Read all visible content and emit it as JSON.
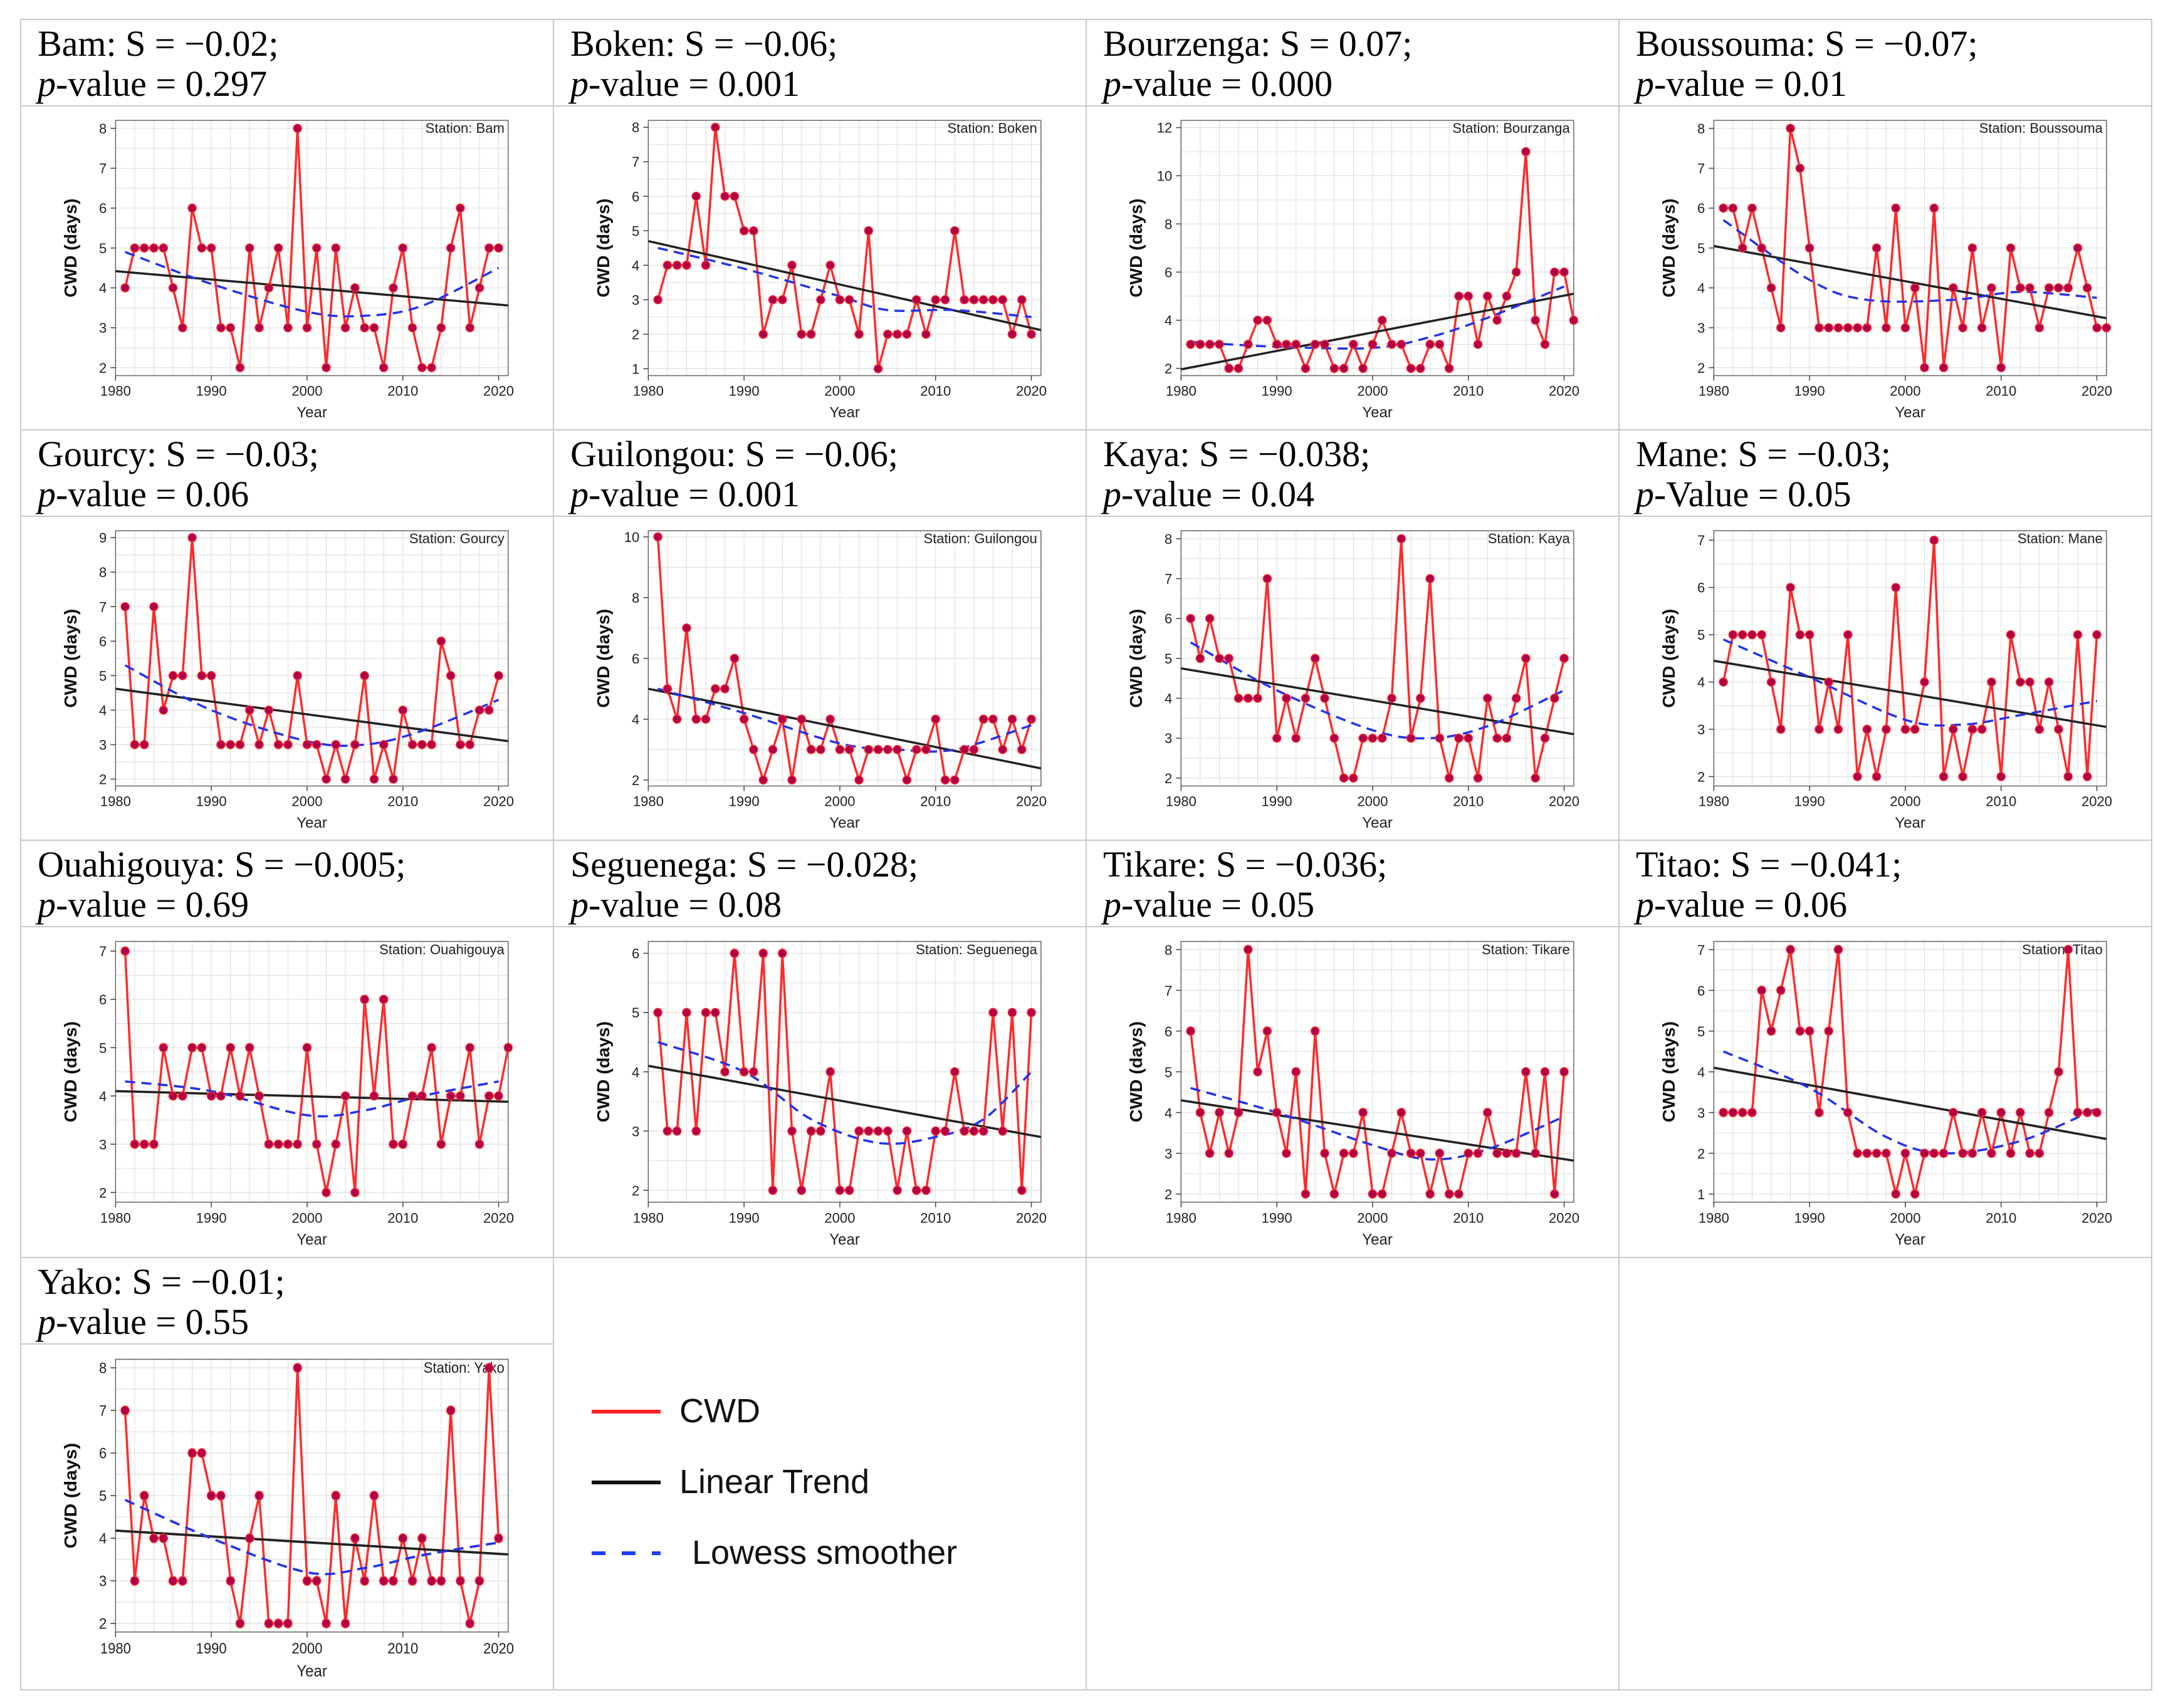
{
  "chart_data": [
    {
      "type": "line",
      "station": "Bam",
      "title": "Station: Bam",
      "header": "Bam: S = −0.02;",
      "pvalue": "p-value = 0.297",
      "xlabel": "Year",
      "ylabel": "CWD (days)",
      "xlim": [
        1980,
        2021
      ],
      "ylim": [
        1.8,
        8.2
      ],
      "yticks": [
        2,
        3,
        4,
        5,
        6,
        7,
        8
      ],
      "xticks": [
        1980,
        1990,
        2000,
        2010,
        2020
      ],
      "start_year": 1981,
      "values": [
        4,
        5,
        5,
        5,
        5,
        4,
        3,
        6,
        5,
        5,
        3,
        3,
        2,
        5,
        3,
        4,
        5,
        3,
        8,
        3,
        5,
        2,
        5,
        3,
        4,
        3,
        3,
        2,
        4,
        5,
        3,
        2,
        2,
        3,
        5,
        6,
        3,
        4,
        5,
        5
      ],
      "trend": [
        4.42,
        3.56
      ],
      "lowess": [
        [
          1981,
          4.9
        ],
        [
          1990,
          4.1
        ],
        [
          2000,
          3.4
        ],
        [
          2006,
          3.3
        ],
        [
          2012,
          3.55
        ],
        [
          2020,
          4.5
        ]
      ]
    },
    {
      "type": "line",
      "station": "Boken",
      "title": "Station: Boken",
      "header": "Boken:  S = −0.06;",
      "pvalue": "p-value = 0.001",
      "xlabel": "Year",
      "ylabel": "CWD (days)",
      "xlim": [
        1980,
        2021
      ],
      "ylim": [
        0.8,
        8.2
      ],
      "yticks": [
        1,
        2,
        3,
        4,
        5,
        6,
        7,
        8
      ],
      "xticks": [
        1980,
        1990,
        2000,
        2010,
        2020
      ],
      "start_year": 1981,
      "values": [
        3,
        4,
        4,
        4,
        6,
        4,
        8,
        6,
        6,
        5,
        5,
        2,
        3,
        3,
        4,
        2,
        2,
        3,
        4,
        3,
        3,
        2,
        5,
        1,
        2,
        2,
        2,
        3,
        2,
        3,
        3,
        5,
        3,
        3,
        3,
        3,
        3,
        2,
        3,
        2
      ],
      "trend": [
        4.7,
        2.12
      ],
      "lowess": [
        [
          1981,
          4.5
        ],
        [
          1990,
          3.9
        ],
        [
          2000,
          3.1
        ],
        [
          2005,
          2.7
        ],
        [
          2012,
          2.7
        ],
        [
          2020,
          2.5
        ]
      ]
    },
    {
      "type": "line",
      "station": "Bourzenga",
      "title": "Station: Bourzanga",
      "header": "Bourzenga: S = 0.07;",
      "pvalue": "p-value = 0.000",
      "xlabel": "Year",
      "ylabel": "CWD (days)",
      "xlim": [
        1980,
        2021
      ],
      "ylim": [
        1.7,
        12.3
      ],
      "yticks": [
        2,
        4,
        6,
        8,
        10,
        12
      ],
      "xticks": [
        1980,
        1990,
        2000,
        2010,
        2020
      ],
      "start_year": 1981,
      "values": [
        3,
        3,
        3,
        3,
        2,
        2,
        3,
        4,
        4,
        3,
        3,
        3,
        2,
        3,
        3,
        2,
        2,
        3,
        2,
        3,
        4,
        3,
        3,
        2,
        2,
        3,
        3,
        2,
        5,
        5,
        3,
        5,
        4,
        5,
        6,
        11,
        4,
        3,
        6,
        6,
        4
      ],
      "trend": [
        1.96,
        5.1
      ],
      "lowess": [
        [
          1981,
          3.1
        ],
        [
          1990,
          2.9
        ],
        [
          2000,
          2.85
        ],
        [
          2006,
          3.3
        ],
        [
          2012,
          4.1
        ],
        [
          2020,
          5.4
        ]
      ]
    },
    {
      "type": "line",
      "station": "Boussouma",
      "title": "Station: Boussouma",
      "header": "Boussouma: S = −0.07;",
      "pvalue": "p-value = 0.01",
      "xlabel": "Year",
      "ylabel": "CWD (days)",
      "xlim": [
        1980,
        2021
      ],
      "ylim": [
        1.8,
        8.2
      ],
      "yticks": [
        2,
        3,
        4,
        5,
        6,
        7,
        8
      ],
      "xticks": [
        1980,
        1990,
        2000,
        2010,
        2020
      ],
      "start_year": 1981,
      "values": [
        6,
        6,
        5,
        6,
        5,
        4,
        3,
        8,
        7,
        5,
        3,
        3,
        3,
        3,
        3,
        3,
        5,
        3,
        6,
        3,
        4,
        2,
        6,
        2,
        4,
        3,
        5,
        3,
        4,
        2,
        5,
        4,
        4,
        3,
        4,
        4,
        4,
        5,
        4,
        3,
        3
      ],
      "trend": [
        5.05,
        3.24
      ],
      "lowess": [
        [
          1981,
          5.7
        ],
        [
          1990,
          4.2
        ],
        [
          1996,
          3.7
        ],
        [
          2005,
          3.7
        ],
        [
          2012,
          3.9
        ],
        [
          2020,
          3.75
        ]
      ]
    },
    {
      "type": "line",
      "station": "Gourcy",
      "title": "Station: Gourcy",
      "header": "Gourcy:  S = −0.03;",
      "pvalue": "p-value = 0.06",
      "xlabel": "Year",
      "ylabel": "CWD (days)",
      "xlim": [
        1980,
        2021
      ],
      "ylim": [
        1.8,
        9.2
      ],
      "yticks": [
        2,
        3,
        4,
        5,
        6,
        7,
        8,
        9
      ],
      "xticks": [
        1980,
        1990,
        2000,
        2010,
        2020
      ],
      "start_year": 1981,
      "values": [
        7,
        3,
        3,
        7,
        4,
        5,
        5,
        9,
        5,
        5,
        3,
        3,
        3,
        4,
        3,
        4,
        3,
        3,
        5,
        3,
        3,
        2,
        3,
        2,
        3,
        5,
        2,
        3,
        2,
        4,
        3,
        3,
        3,
        6,
        5,
        3,
        3,
        4,
        4,
        5
      ],
      "trend": [
        4.62,
        3.1
      ],
      "lowess": [
        [
          1981,
          5.3
        ],
        [
          1990,
          4.0
        ],
        [
          2000,
          3.1
        ],
        [
          2006,
          3.0
        ],
        [
          2012,
          3.4
        ],
        [
          2020,
          4.3
        ]
      ]
    },
    {
      "type": "line",
      "station": "Guilongou",
      "title": "Station: Guilongou",
      "header": "Guilongou:  S = −0.06;",
      "pvalue": "p-value = 0.001",
      "xlabel": "Year",
      "ylabel": "CWD (days)",
      "xlim": [
        1980,
        2021
      ],
      "ylim": [
        1.8,
        10.2
      ],
      "yticks": [
        2,
        4,
        6,
        8,
        10
      ],
      "xticks": [
        1980,
        1990,
        2000,
        2010,
        2020
      ],
      "start_year": 1981,
      "values": [
        10,
        5,
        4,
        7,
        4,
        4,
        5,
        5,
        6,
        4,
        3,
        2,
        3,
        4,
        2,
        4,
        3,
        3,
        4,
        3,
        3,
        2,
        3,
        3,
        3,
        3,
        2,
        3,
        3,
        4,
        2,
        2,
        3,
        3,
        4,
        4,
        3,
        4,
        3,
        4
      ],
      "trend": [
        5.0,
        2.38
      ],
      "lowess": [
        [
          1981,
          5.0
        ],
        [
          1990,
          4.2
        ],
        [
          2000,
          3.2
        ],
        [
          2006,
          3.0
        ],
        [
          2012,
          3.0
        ],
        [
          2020,
          3.8
        ]
      ]
    },
    {
      "type": "line",
      "station": "Kaya",
      "title": "Station: Kaya",
      "header": "Kaya:  S = −0.038;",
      "pvalue": "p-value = 0.04",
      "xlabel": "Year",
      "ylabel": "CWD (days)",
      "xlim": [
        1980,
        2021
      ],
      "ylim": [
        1.8,
        8.2
      ],
      "yticks": [
        2,
        3,
        4,
        5,
        6,
        7,
        8
      ],
      "xticks": [
        1980,
        1990,
        2000,
        2010,
        2020
      ],
      "start_year": 1981,
      "values": [
        6,
        5,
        6,
        5,
        5,
        4,
        4,
        4,
        7,
        3,
        4,
        3,
        4,
        5,
        4,
        3,
        2,
        2,
        3,
        3,
        3,
        4,
        8,
        3,
        4,
        7,
        3,
        2,
        3,
        3,
        2,
        4,
        3,
        3,
        4,
        5,
        2,
        3,
        4,
        5
      ],
      "trend": [
        4.75,
        3.1
      ],
      "lowess": [
        [
          1981,
          5.4
        ],
        [
          1990,
          4.2
        ],
        [
          2000,
          3.2
        ],
        [
          2006,
          3.0
        ],
        [
          2012,
          3.3
        ],
        [
          2020,
          4.2
        ]
      ]
    },
    {
      "type": "line",
      "station": "Mane",
      "title": "Station: Mane",
      "header": "Mane: S = −0.03;",
      "pvalue": "p-Value = 0.05",
      "xlabel": "Year",
      "ylabel": "CWD (days)",
      "xlim": [
        1980,
        2021
      ],
      "ylim": [
        1.8,
        7.2
      ],
      "yticks": [
        2,
        3,
        4,
        5,
        6,
        7
      ],
      "xticks": [
        1980,
        1990,
        2000,
        2010,
        2020
      ],
      "start_year": 1981,
      "values": [
        4,
        5,
        5,
        5,
        5,
        4,
        3,
        6,
        5,
        5,
        3,
        4,
        3,
        5,
        2,
        3,
        2,
        3,
        6,
        3,
        3,
        4,
        7,
        2,
        3,
        2,
        3,
        3,
        4,
        2,
        5,
        4,
        4,
        3,
        4,
        3,
        2,
        5,
        2,
        5
      ],
      "trend": [
        4.45,
        3.05
      ],
      "lowess": [
        [
          1981,
          4.9
        ],
        [
          1990,
          4.1
        ],
        [
          2000,
          3.2
        ],
        [
          2006,
          3.1
        ],
        [
          2012,
          3.3
        ],
        [
          2020,
          3.6
        ]
      ]
    },
    {
      "type": "line",
      "station": "Ouahigouya",
      "title": "Station: Ouahigouya",
      "header": "Ouahigouya: S = −0.005;",
      "pvalue": "p-value = 0.69",
      "xlabel": "Year",
      "ylabel": "CWD (days)",
      "xlim": [
        1980,
        2021
      ],
      "ylim": [
        1.8,
        7.2
      ],
      "yticks": [
        2,
        3,
        4,
        5,
        6,
        7
      ],
      "xticks": [
        1980,
        1990,
        2000,
        2010,
        2020
      ],
      "start_year": 1981,
      "values": [
        7,
        3,
        3,
        3,
        5,
        4,
        4,
        5,
        5,
        4,
        4,
        5,
        4,
        5,
        4,
        3,
        3,
        3,
        3,
        5,
        3,
        2,
        3,
        4,
        2,
        6,
        4,
        6,
        3,
        3,
        4,
        4,
        5,
        3,
        4,
        4,
        5,
        3,
        4,
        4,
        5
      ],
      "trend": [
        4.1,
        3.88
      ],
      "lowess": [
        [
          1981,
          4.3
        ],
        [
          1990,
          4.1
        ],
        [
          2000,
          3.6
        ],
        [
          2006,
          3.7
        ],
        [
          2012,
          4.0
        ],
        [
          2020,
          4.3
        ]
      ]
    },
    {
      "type": "line",
      "station": "Seguenega",
      "title": "Station: Seguenega",
      "header": "Seguenega: S = −0.028;",
      "pvalue": "p-value = 0.08",
      "xlabel": "Year",
      "ylabel": "CWD (days)",
      "xlim": [
        1980,
        2021
      ],
      "ylim": [
        1.8,
        6.2
      ],
      "yticks": [
        2,
        3,
        4,
        5,
        6
      ],
      "xticks": [
        1980,
        1990,
        2000,
        2010,
        2020
      ],
      "start_year": 1981,
      "values": [
        5,
        3,
        3,
        5,
        3,
        5,
        5,
        4,
        6,
        4,
        4,
        6,
        2,
        6,
        3,
        2,
        3,
        3,
        4,
        2,
        2,
        3,
        3,
        3,
        3,
        2,
        3,
        2,
        2,
        3,
        3,
        4,
        3,
        3,
        3,
        5,
        3,
        5,
        2,
        5
      ],
      "trend": [
        4.1,
        2.9
      ],
      "lowess": [
        [
          1981,
          4.5
        ],
        [
          1990,
          4.0
        ],
        [
          1997,
          3.2
        ],
        [
          2004,
          2.8
        ],
        [
          2010,
          2.9
        ],
        [
          2015,
          3.2
        ],
        [
          2020,
          4.0
        ]
      ]
    },
    {
      "type": "line",
      "station": "Tikare",
      "title": "Station: Tikare",
      "header": "Tikare: S = −0.036;",
      "pvalue": "p-value = 0.05",
      "xlabel": "Year",
      "ylabel": "CWD (days)",
      "xlim": [
        1980,
        2021
      ],
      "ylim": [
        1.8,
        8.2
      ],
      "yticks": [
        2,
        3,
        4,
        5,
        6,
        7,
        8
      ],
      "xticks": [
        1980,
        1990,
        2000,
        2010,
        2020
      ],
      "start_year": 1981,
      "values": [
        6,
        4,
        3,
        4,
        3,
        4,
        8,
        5,
        6,
        4,
        3,
        5,
        2,
        6,
        3,
        2,
        3,
        3,
        4,
        2,
        2,
        3,
        4,
        3,
        3,
        2,
        3,
        2,
        2,
        3,
        3,
        4,
        3,
        3,
        3,
        5,
        3,
        5,
        2,
        5
      ],
      "trend": [
        4.3,
        2.82
      ],
      "lowess": [
        [
          1981,
          4.6
        ],
        [
          1990,
          4.0
        ],
        [
          2000,
          3.2
        ],
        [
          2006,
          2.85
        ],
        [
          2012,
          3.1
        ],
        [
          2020,
          3.9
        ]
      ]
    },
    {
      "type": "line",
      "station": "Titao",
      "title": "Station: Titao",
      "header": "Titao: S = −0.041;",
      "pvalue": "p-value = 0.06",
      "xlabel": "Year",
      "ylabel": "CWD (days)",
      "xlim": [
        1980,
        2021
      ],
      "ylim": [
        0.8,
        7.2
      ],
      "yticks": [
        1,
        2,
        3,
        4,
        5,
        6,
        7
      ],
      "xticks": [
        1980,
        1990,
        2000,
        2010,
        2020
      ],
      "start_year": 1981,
      "values": [
        3,
        3,
        3,
        3,
        6,
        5,
        6,
        7,
        5,
        5,
        3,
        5,
        7,
        3,
        2,
        2,
        2,
        2,
        1,
        2,
        1,
        2,
        2,
        2,
        3,
        2,
        2,
        3,
        2,
        3,
        2,
        3,
        2,
        2,
        3,
        4,
        7,
        3,
        3,
        3
      ],
      "trend": [
        4.1,
        2.35
      ],
      "lowess": [
        [
          1981,
          4.5
        ],
        [
          1990,
          3.6
        ],
        [
          1998,
          2.4
        ],
        [
          2004,
          2.0
        ],
        [
          2012,
          2.3
        ],
        [
          2020,
          3.1
        ]
      ]
    },
    {
      "type": "line",
      "station": "Yako",
      "title": "Station: Yako",
      "header": "Yako: S = −0.01;",
      "pvalue": "p-value = 0.55",
      "xlabel": "Year",
      "ylabel": "CWD (days)",
      "xlim": [
        1980,
        2021
      ],
      "ylim": [
        1.8,
        8.2
      ],
      "yticks": [
        2,
        3,
        4,
        5,
        6,
        7,
        8
      ],
      "xticks": [
        1980,
        1990,
        2000,
        2010,
        2020
      ],
      "start_year": 1981,
      "values": [
        7,
        3,
        5,
        4,
        4,
        3,
        3,
        6,
        6,
        5,
        5,
        3,
        2,
        4,
        5,
        2,
        2,
        2,
        8,
        3,
        3,
        2,
        5,
        2,
        4,
        3,
        5,
        3,
        3,
        4,
        3,
        4,
        3,
        3,
        7,
        3,
        2,
        3,
        8,
        4
      ],
      "trend": [
        4.18,
        3.62
      ],
      "lowess": [
        [
          1981,
          4.9
        ],
        [
          1990,
          4.0
        ],
        [
          2000,
          3.2
        ],
        [
          2006,
          3.3
        ],
        [
          2012,
          3.6
        ],
        [
          2020,
          3.9
        ]
      ]
    }
  ],
  "legend": {
    "items": [
      {
        "label": "CWD",
        "color": "#ff2020",
        "style": "solid"
      },
      {
        "label": "Linear Trend",
        "color": "#111111",
        "style": "solid"
      },
      {
        "label": "Lowess smoother",
        "color": "#1e3cff",
        "style": "dashed"
      }
    ]
  },
  "colors": {
    "cwd": "#ff2a2a",
    "marker": "#b0004a",
    "trend": "#222222",
    "lowess": "#2233ee",
    "grid": "#dcdcdc"
  }
}
